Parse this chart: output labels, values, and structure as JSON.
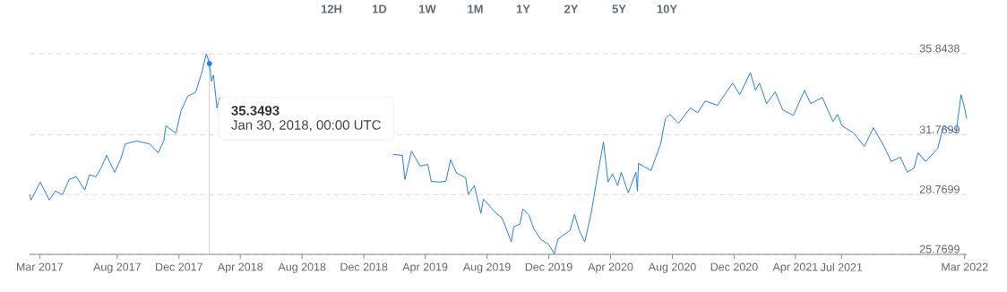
{
  "chart_data": {
    "type": "line",
    "color": "#1f80f0",
    "grid": "y",
    "x": [
      "2017-02-09",
      "2017-02-12",
      "2017-03-02",
      "2017-03-20",
      "2017-04-01",
      "2017-04-15",
      "2017-04-28",
      "2017-05-12",
      "2017-05-29",
      "2017-06-07",
      "2017-06-20",
      "2017-06-30",
      "2017-07-11",
      "2017-07-27",
      "2017-08-08",
      "2017-08-17",
      "2017-09-09",
      "2017-10-04",
      "2017-10-21",
      "2017-11-01",
      "2017-11-05",
      "2017-11-25",
      "2017-12-05",
      "2017-12-18",
      "2018-01-03",
      "2018-01-15",
      "2018-01-24",
      "2018-01-30",
      "2018-02-03",
      "2018-02-07",
      "2018-02-14",
      "2018-02-19",
      "2018-06-01",
      "2019-01-28",
      "2019-02-15",
      "2019-02-20",
      "2019-03-05",
      "2019-03-22",
      "2019-04-06",
      "2019-04-13",
      "2019-04-28",
      "2019-05-12",
      "2019-05-21",
      "2019-06-02",
      "2019-06-20",
      "2019-06-25",
      "2019-07-07",
      "2019-07-20",
      "2019-07-25",
      "2019-08-19",
      "2019-08-31",
      "2019-09-18",
      "2019-09-23",
      "2019-10-05",
      "2019-10-11",
      "2019-10-23",
      "2019-11-01",
      "2019-11-15",
      "2019-12-01",
      "2019-12-12",
      "2019-12-19",
      "2020-01-12",
      "2020-01-21",
      "2020-01-30",
      "2020-02-10",
      "2020-02-22",
      "2020-03-07",
      "2020-03-18",
      "2020-03-27",
      "2020-04-05",
      "2020-04-15",
      "2020-04-22",
      "2020-05-06",
      "2020-05-21",
      "2020-05-24",
      "2020-05-26",
      "2020-06-20",
      "2020-06-28",
      "2020-07-09",
      "2020-07-18",
      "2020-07-27",
      "2020-08-13",
      "2020-09-05",
      "2020-09-20",
      "2020-10-05",
      "2020-10-29",
      "2020-11-28",
      "2020-12-12",
      "2021-01-02",
      "2021-01-12",
      "2021-01-20",
      "2021-02-03",
      "2021-02-20",
      "2021-03-07",
      "2021-03-28",
      "2021-04-19",
      "2021-05-01",
      "2021-05-24",
      "2021-06-14",
      "2021-06-23",
      "2021-07-02",
      "2021-07-25",
      "2021-08-15",
      "2021-09-02",
      "2021-09-23",
      "2021-10-07",
      "2021-10-25",
      "2021-11-08",
      "2021-11-21",
      "2021-11-29",
      "2021-12-14",
      "2022-01-07",
      "2022-01-18",
      "2022-02-12",
      "2022-02-22",
      "2022-03-01",
      "2022-03-05"
    ],
    "values": [
      28.77,
      28.5,
      29.4,
      28.5,
      28.95,
      28.77,
      29.53,
      29.67,
      29.0,
      29.76,
      29.67,
      30.11,
      30.74,
      29.89,
      30.56,
      31.32,
      31.46,
      31.32,
      30.87,
      31.46,
      32.22,
      31.86,
      32.98,
      33.7,
      33.92,
      34.9,
      35.8438,
      35.3493,
      34.46,
      34.77,
      33.11,
      33.65,
      null,
      30.79,
      30.74,
      29.53,
      30.96,
      30.2,
      30.29,
      29.44,
      29.4,
      29.44,
      30.52,
      29.85,
      29.62,
      28.77,
      29.22,
      27.83,
      28.55,
      27.83,
      27.6,
      26.4,
      27.16,
      27.29,
      28.05,
      27.74,
      27.07,
      26.53,
      26.26,
      25.8,
      26.53,
      26.98,
      27.78,
      26.98,
      26.4,
      27.74,
      29.85,
      31.41,
      29.4,
      29.8,
      29.22,
      29.89,
      28.86,
      29.89,
      28.95,
      30.34,
      29.98,
      30.56,
      31.32,
      32.58,
      32.8,
      32.35,
      33.11,
      32.89,
      33.47,
      33.25,
      34.37,
      33.79,
      34.9,
      34.01,
      34.37,
      33.34,
      33.92,
      33.02,
      32.75,
      34.01,
      33.34,
      33.65,
      32.44,
      32.8,
      32.22,
      31.86,
      31.19,
      32.13,
      31.19,
      30.43,
      30.65,
      29.89,
      30.11,
      30.87,
      30.43,
      31.1,
      32.22,
      31.86,
      33.79,
      33.11,
      32.58
    ],
    "xlim": [
      "2017-02-09",
      "2022-03-05"
    ],
    "xticks": [
      {
        "value": "2017-03-01",
        "label": "Mar 2017"
      },
      {
        "value": "2017-08-01",
        "label": "Aug 2017"
      },
      {
        "value": "2017-12-01",
        "label": "Dec 2017"
      },
      {
        "value": "2018-04-01",
        "label": "Apr 2018"
      },
      {
        "value": "2018-08-01",
        "label": "Aug 2018"
      },
      {
        "value": "2018-12-01",
        "label": "Dec 2018"
      },
      {
        "value": "2019-04-01",
        "label": "Apr 2019"
      },
      {
        "value": "2019-08-01",
        "label": "Aug 2019"
      },
      {
        "value": "2019-12-01",
        "label": "Dec 2019"
      },
      {
        "value": "2020-04-01",
        "label": "Apr 2020"
      },
      {
        "value": "2020-08-01",
        "label": "Aug 2020"
      },
      {
        "value": "2020-12-01",
        "label": "Dec 2020"
      },
      {
        "value": "2021-04-01",
        "label": "Apr 2021"
      },
      {
        "value": "2021-07-01",
        "label": "Jul 2021"
      },
      {
        "value": "2022-03-01",
        "label": "Mar 2022"
      }
    ],
    "ylim": [
      25.7699,
      35.8438
    ],
    "yticks": [
      25.7699,
      28.7699,
      31.7699,
      35.8438
    ],
    "ref_lines": [
      {
        "axis": "x",
        "value": "2018-01-30",
        "color": "#d0d0d0"
      }
    ],
    "annotations": [
      "12H",
      "1D",
      "1W",
      "1M",
      "1Y",
      "2Y",
      "5Y",
      "10Y",
      "**35.3493**",
      "Jan 30, 2018, 00:00 UTC"
    ]
  }
}
